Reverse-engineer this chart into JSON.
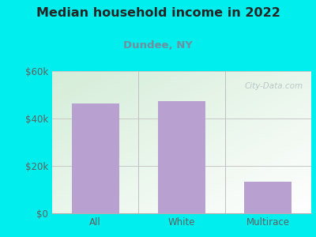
{
  "title": "Median household income in 2022",
  "subtitle": "Dundee, NY",
  "categories": [
    "All",
    "White",
    "Multirace"
  ],
  "values": [
    46500,
    47500,
    13500
  ],
  "bar_color": "#b8a0d0",
  "title_fontsize": 11.5,
  "subtitle_fontsize": 9.5,
  "title_color": "#252525",
  "subtitle_color": "#7090a0",
  "tick_label_color": "#606060",
  "background_outer": "#00eeee",
  "background_inner_topleft": "#d4edd8",
  "background_inner_bottomright": "#ffffff",
  "grid_color": "#c8c8c8",
  "separator_color": "#c0c0c0",
  "ylim": [
    0,
    60000
  ],
  "yticks": [
    0,
    20000,
    40000,
    60000
  ],
  "ytick_labels": [
    "$0",
    "$20k",
    "$40k",
    "$60k"
  ],
  "watermark": "City-Data.com",
  "watermark_color": "#b8c8c8"
}
